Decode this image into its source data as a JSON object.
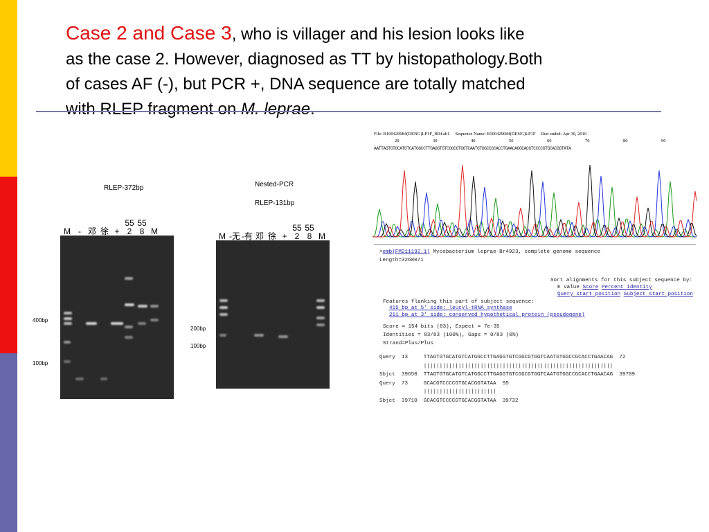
{
  "slide": {
    "title_red": "Case 2 and Case 3",
    "body": [
      ", who is villager and his lesion looks like",
      "as the case 2. However,  diagnosed as TT by histopathology.Both",
      "of cases AF (-), but PCR +,  DNA sequence are totally matched",
      "with RLEP fragment on "
    ],
    "italic": "M. leprae",
    "end": ".",
    "gel1": {
      "title": "RLEP-372bp",
      "lanes": [
        "M",
        "-",
        "邓",
        "徐",
        "+",
        "552",
        "558",
        "M"
      ],
      "markers": [
        "400bp",
        "100bp"
      ]
    },
    "gel2": {
      "title": "Nested-PCR",
      "subtitle": "RLEP-131bp",
      "lanes": [
        "M",
        "-无",
        "-有",
        "邓",
        "徐",
        "+",
        "552",
        "558",
        "M"
      ],
      "markers": [
        "200bp",
        "100bp"
      ]
    },
    "chromatogram": {
      "header": "File: B100429084(DENG)LP1F_H04.ab1     Sequence Name: B100429084(DENG)LP1F     Run ended: Apr 30, 2010",
      "positions": [
        20,
        30,
        40,
        50,
        60,
        70,
        80,
        90
      ],
      "sequence": "AATTAGTGTGCATGTCATGGCCTTGAGGTGTCGGCGTGGTCAATGTGGCCGCACCTGAACAGGCACGTCCCCGTGCACGGTATA"
    },
    "blast": {
      "hit_link": "emb|FM211192.1|",
      "hit_desc": "Mycobacterium leprae Br4923, complete genome sequence",
      "length": "Length=3268071",
      "sort_title": "Sort alignments for this subject sequence by:",
      "sort_plain": "E value",
      "sort_links": [
        "Score",
        "Percent identity",
        "Query start position",
        "Subject start position"
      ],
      "features_title": "Features flanking this part of subject sequence:",
      "features": [
        "415 bp at 5' side: leucyl-tRNA synthase",
        "211 bp at 3' side: conserved hypothetical protein (pseudogene)"
      ],
      "stats": [
        "Score =  154 bits (83),  Expect = 7e-35",
        "Identities = 83/83 (100%), Gaps = 0/83 (0%)",
        "Strand=Plus/Plus"
      ],
      "alignment": [
        "Query  13     TTAGTGTGCATGTCATGGCCTTGAGGTGTCGGCGTGGTCAATGTGGCCGCACCTGAACAG  72",
        "              ||||||||||||||||||||||||||||||||||||||||||||||||||||||||||||",
        "Sbjct  39650  TTAGTGTGCATGTCATGGCCTTGAGGTGTCGGCGTGGTCAATGTGGCCGCACCTGAACAG  39709",
        "",
        "Query  73     GCACGTCCCCGTGCACGGTATAA  95",
        "              |||||||||||||||||||||||",
        "Sbjct  39710  GCACGTCCCCGTGCACGGTATAA  39732"
      ]
    }
  }
}
